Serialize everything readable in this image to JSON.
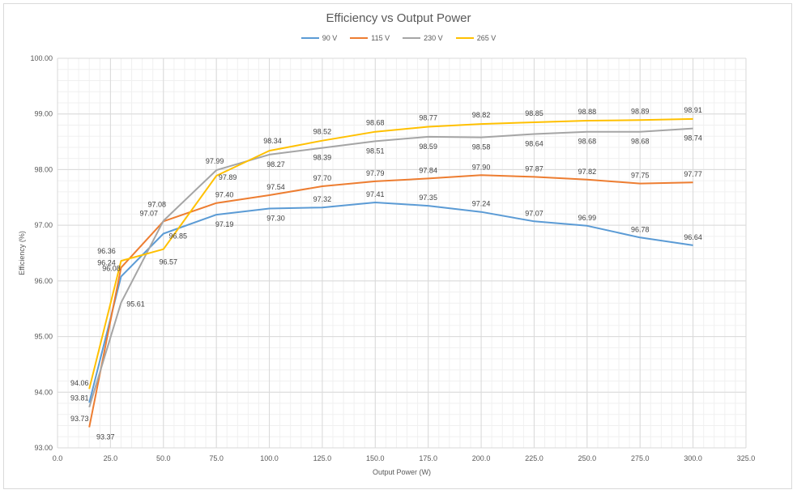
{
  "chart_data": {
    "type": "line",
    "title": "Efficiency vs Output Power",
    "xlabel": "Output Power (W)",
    "ylabel": "Efficiency (%)",
    "xlim": [
      0,
      325
    ],
    "ylim": [
      93,
      100
    ],
    "x_ticks": [
      "0.0",
      "25.0",
      "50.0",
      "75.0",
      "100.0",
      "125.0",
      "150.0",
      "175.0",
      "200.0",
      "225.0",
      "250.0",
      "275.0",
      "300.0",
      "325.0"
    ],
    "y_ticks": [
      "93.00",
      "94.00",
      "95.00",
      "96.00",
      "97.00",
      "98.00",
      "99.00",
      "100.00"
    ],
    "legend_position": "top-center",
    "grid": true,
    "x": [
      15,
      30,
      50,
      75,
      100,
      125,
      150,
      175,
      200,
      225,
      250,
      275,
      300
    ],
    "series": [
      {
        "name": "90 V",
        "color": "#5b9bd5",
        "values": [
          93.81,
          96.08,
          96.85,
          97.19,
          97.3,
          97.32,
          97.41,
          97.35,
          97.24,
          97.07,
          96.99,
          96.78,
          96.64
        ],
        "labels": [
          "93.81",
          "96.08",
          "96.85",
          "97.19",
          "97.30",
          "97.32",
          "97.41",
          "97.35",
          "97.24",
          "97.07",
          "96.99",
          "96.78",
          "96.64"
        ]
      },
      {
        "name": "115 V",
        "color": "#ed7d31",
        "values": [
          93.37,
          96.24,
          97.07,
          97.4,
          97.54,
          97.7,
          97.79,
          97.84,
          97.9,
          97.87,
          97.82,
          97.75,
          97.77
        ],
        "labels": [
          "93.37",
          "96.24",
          "97.07",
          "97.40",
          "97.54",
          "97.70",
          "97.79",
          "97.84",
          "97.90",
          "97.87",
          "97.82",
          "97.75",
          "97.77"
        ]
      },
      {
        "name": "230 V",
        "color": "#a5a5a5",
        "values": [
          93.73,
          95.61,
          97.08,
          97.99,
          98.27,
          98.39,
          98.51,
          98.59,
          98.58,
          98.64,
          98.68,
          98.68,
          98.74
        ],
        "labels": [
          "93.73",
          "95.61",
          "97.08",
          "97.99",
          "98.27",
          "98.39",
          "98.51",
          "98.59",
          "98.58",
          "98.64",
          "98.68",
          "98.68",
          "98.74"
        ]
      },
      {
        "name": "265 V",
        "color": "#ffc000",
        "values": [
          94.06,
          96.36,
          96.57,
          97.89,
          98.34,
          98.52,
          98.68,
          98.77,
          98.82,
          98.85,
          98.88,
          98.89,
          98.91
        ],
        "labels": [
          "94.06",
          "96.36",
          "96.57",
          "97.89",
          "98.34",
          "98.52",
          "98.68",
          "98.77",
          "98.82",
          "98.85",
          "98.88",
          "98.89",
          "98.91"
        ]
      }
    ]
  }
}
